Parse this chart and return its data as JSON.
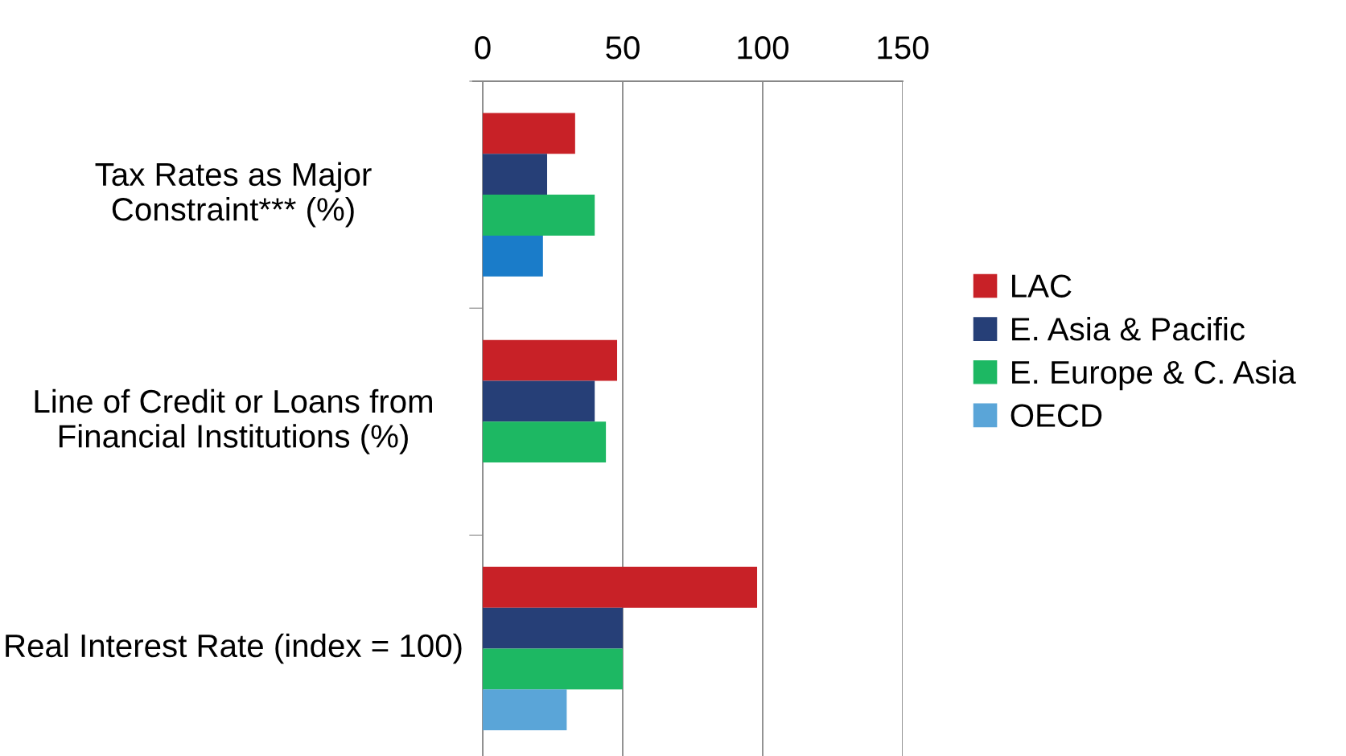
{
  "chart_data": {
    "type": "bar",
    "orientation": "horizontal",
    "categories": [
      "Tax Rates as Major Constraint*** (%)",
      "Line of Credit or Loans from Financial Institutions (%)",
      "Real Interest Rate (index = 100)"
    ],
    "series": [
      {
        "name": "LAC",
        "color": "#c82127",
        "values": [
          33,
          48,
          98
        ]
      },
      {
        "name": "E. Asia & Pacific",
        "color": "#263f77",
        "values": [
          23,
          40,
          50
        ]
      },
      {
        "name": "E. Europe & C. Asia",
        "color": "#1db863",
        "values": [
          40,
          44,
          50
        ]
      },
      {
        "name": "OECD",
        "color": "#5aa5d8",
        "colors": [
          "#1a7cc9",
          "#5aa5d8",
          "#5aa5d8"
        ],
        "values": [
          21.5,
          null,
          30
        ]
      }
    ],
    "xlim": [
      0,
      150
    ],
    "xticks": [
      0,
      50,
      100,
      150
    ],
    "grid": "x",
    "legend": "right"
  }
}
